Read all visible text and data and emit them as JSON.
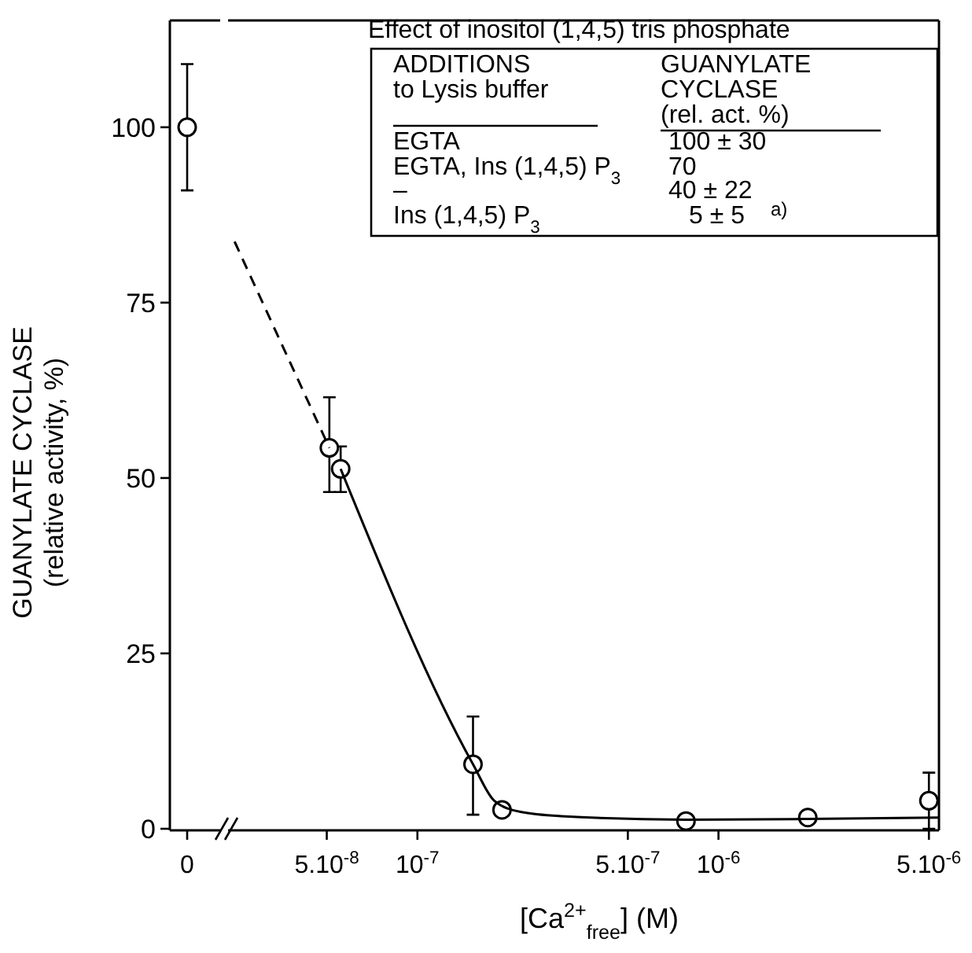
{
  "chart_data": [
    {
      "type": "scatter",
      "ylabel": "GUANYLATE CYCLASE\n(relative activity, %)",
      "categories": [
        "0"
      ],
      "ylim": [
        0,
        115
      ],
      "yticks": [
        0,
        25,
        50,
        75,
        100
      ],
      "series": [
        {
          "type": "scatter",
          "color": "#000000",
          "marker": "circle",
          "values": [
            100
          ],
          "errors": [
            [
              91,
              109
            ]
          ]
        }
      ]
    },
    {
      "type": "scatter",
      "xlabel": "[Ca$^{2+}$$_{free}$] (M)",
      "log": "x",
      "tick_labels": "x",
      "xlim": [
        2.35e-08,
        5.4e-06
      ],
      "xticks": [
        {
          "value": 5e-08,
          "label": "5.10$^{-8}$"
        },
        {
          "value": 1e-07,
          "label": "10$^{-7}$"
        },
        {
          "value": 5e-07,
          "label": "5.10$^{-7}$"
        },
        {
          "value": 1e-06,
          "label": "10$^{-6}$"
        },
        {
          "value": 5e-06,
          "label": "5.10$^{-6}$"
        }
      ],
      "ylim": [
        0,
        115
      ],
      "yticks": [
        0,
        25,
        50,
        75,
        100
      ],
      "series": [
        {
          "type": "scatter",
          "color": "#000000",
          "marker": "circle",
          "x": [
            5.1e-08,
            5.56e-08,
            1.53e-07,
            1.91e-07,
            7.8e-07,
            1.98e-06,
            5e-06
          ],
          "values": [
            54.3,
            51.3,
            9.2,
            2.7,
            1.1,
            1.6,
            4
          ],
          "errors": [
            [
              48,
              61.5
            ],
            [
              48,
              54.5
            ],
            [
              2,
              16
            ],
            null,
            null,
            null,
            [
              0,
              8
            ]
          ]
        },
        {
          "type": "line",
          "color": "#000000",
          "line_style": "solid",
          "x": [
            5.56e-08,
            1.53e-07,
            1.8e-07,
            2.2e-07,
            3e-07,
            7.8e-07,
            1.98e-06,
            5.4e-06
          ],
          "values": [
            51.3,
            9.2,
            4,
            2.4,
            1.8,
            1.3,
            1.4,
            1.6
          ]
        },
        {
          "type": "line",
          "color": "#000000",
          "line_style": "dashed",
          "x": [
            2.47e-08,
            5.1e-08
          ],
          "values": [
            83.7,
            54.3
          ]
        }
      ],
      "annotations": [
        "Effect of inositol (1,4,5) tris phosphate",
        "ADDITIONS",
        "to Lysis buffer",
        "GUANYLATE",
        "CYCLASE",
        "(rel. act. %)",
        "EGTA",
        "100 ± 30",
        "EGTA, Ins (1,4,5) P$_{3}$",
        "70",
        "–",
        "40 ± 22",
        "Ins (1,4,5) P$_{3}$",
        "5 ± 5",
        "a)"
      ]
    }
  ]
}
